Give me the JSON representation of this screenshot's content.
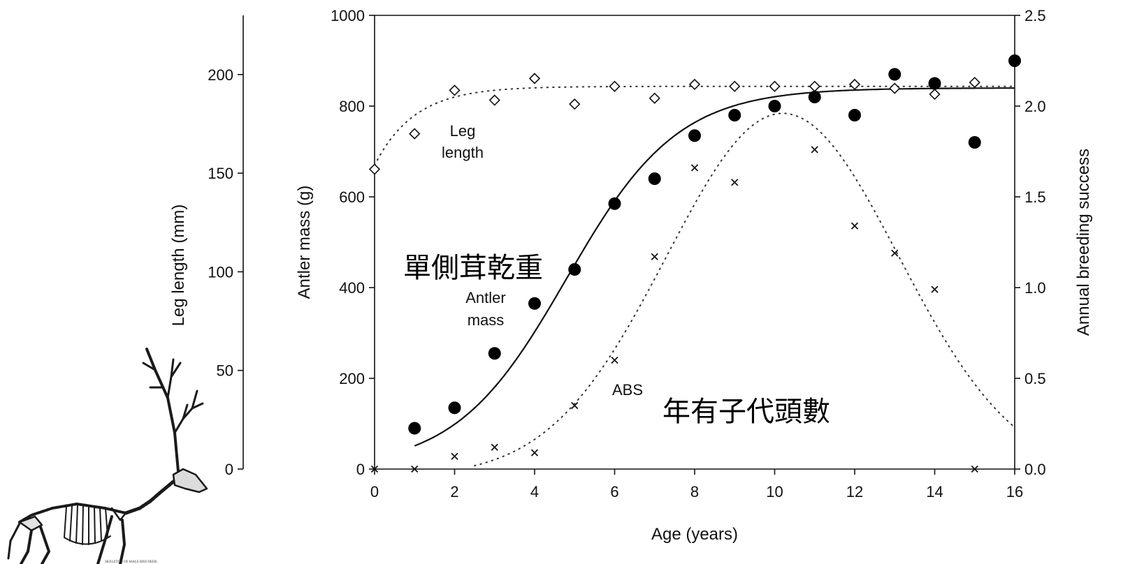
{
  "chart_data": {
    "type": "scatter",
    "xlabel": "Age (years)",
    "ylabel_left_outer": "Leg length (mm)",
    "ylabel_left_inner": "Antler mass (g)",
    "ylabel_right": "Annual breeding success",
    "xlim": [
      0,
      16
    ],
    "ylim_antler": [
      0,
      1000
    ],
    "ylim_leg": [
      0,
      230
    ],
    "ylim_abs": [
      0,
      2.5
    ],
    "x_ticks": [
      "0",
      "2",
      "4",
      "6",
      "8",
      "10",
      "12",
      "14",
      "16"
    ],
    "antler_ticks": [
      "0",
      "200",
      "400",
      "600",
      "800",
      "1000"
    ],
    "leg_ticks": [
      "0",
      "50",
      "100",
      "150",
      "200"
    ],
    "abs_ticks": [
      "0.0",
      "0.5",
      "1.0",
      "1.5",
      "2.0",
      "2.5"
    ],
    "grid": false,
    "series": [
      {
        "name": "Leg length",
        "marker": "diamond-open",
        "axis": "leg",
        "x": [
          0,
          1,
          2,
          3,
          4,
          5,
          6,
          7,
          8,
          9,
          10,
          11,
          12,
          13,
          14,
          15
        ],
        "y": [
          152,
          170,
          192,
          187,
          198,
          185,
          194,
          188,
          195,
          194,
          194,
          194,
          195,
          193,
          190,
          196
        ]
      },
      {
        "name": "Antler mass",
        "marker": "filled-circle",
        "axis": "antler",
        "x": [
          1,
          2,
          3,
          4,
          5,
          6,
          7,
          8,
          9,
          10,
          11,
          12,
          13,
          14,
          15,
          16
        ],
        "y": [
          90,
          135,
          255,
          365,
          440,
          585,
          640,
          735,
          780,
          800,
          820,
          780,
          870,
          850,
          720,
          900
        ]
      },
      {
        "name": "ABS",
        "marker": "x",
        "axis": "abs",
        "x": [
          0,
          1,
          2,
          3,
          4,
          5,
          6,
          7,
          8,
          9,
          10,
          11,
          12,
          13,
          14,
          15
        ],
        "y": [
          0.0,
          0.0,
          0.07,
          0.12,
          0.09,
          0.35,
          0.6,
          1.17,
          1.66,
          1.58,
          2.0,
          1.76,
          1.34,
          1.19,
          0.99,
          0.0
        ]
      }
    ],
    "curves": {
      "antler_fit": {
        "type": "logistic",
        "K": 840,
        "r": 0.72,
        "x0": 4.8,
        "style": "solid"
      },
      "leg_fit": {
        "type": "saturating",
        "a": 40,
        "b": 154,
        "k": 1.0,
        "style": "dotted"
      },
      "abs_fit": {
        "type": "gaussian",
        "peak": 2.0,
        "center": 10.2,
        "width": 2.9,
        "style": "dotted"
      }
    },
    "annotations": {
      "leg": "Leg",
      "length": "length",
      "antler": "Antler",
      "mass": "mass",
      "abs": "ABS",
      "cjk_antler": "單側茸乾重",
      "cjk_abs": "年有子代頭數"
    }
  },
  "illustration": {
    "name": "red deer skeleton",
    "caption": "SKELETON OF MALE RED DEER."
  }
}
